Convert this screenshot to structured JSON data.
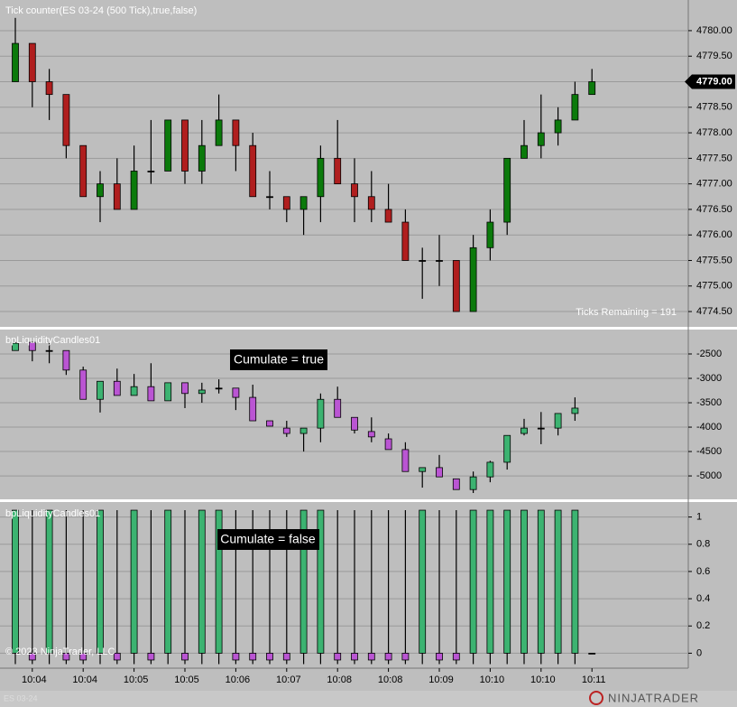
{
  "chart_data": [
    {
      "type": "candlestick",
      "title": "Tick counter(ES 03-24 (500 Tick),true,false)",
      "annotation": "Ticks Remaining = 191",
      "price_marker": {
        "value": 4779,
        "label": "4779.00"
      },
      "up_color": "#0b7a0b",
      "down_color": "#b01e1e",
      "grid": true,
      "ylim": [
        4774.2,
        4780.6
      ],
      "yticks": [
        {
          "value": 4780,
          "label": "4780.00"
        },
        {
          "value": 4779.5,
          "label": "4779.50"
        },
        {
          "value": 4779,
          "label": "4779.00"
        },
        {
          "value": 4778.5,
          "label": "4778.50"
        },
        {
          "value": 4778,
          "label": "4778.00"
        },
        {
          "value": 4777.5,
          "label": "4777.50"
        },
        {
          "value": 4777,
          "label": "4777.00"
        },
        {
          "value": 4776.5,
          "label": "4776.50"
        },
        {
          "value": 4776,
          "label": "4776.00"
        },
        {
          "value": 4775.5,
          "label": "4775.50"
        },
        {
          "value": 4775,
          "label": "4775.00"
        },
        {
          "value": 4774.5,
          "label": "4774.50"
        }
      ],
      "open": [
        4779.0,
        4779.75,
        4779.0,
        4778.75,
        4777.75,
        4776.75,
        4777.0,
        4776.5,
        4777.25,
        4777.25,
        4778.25,
        4777.25,
        4777.75,
        4778.25,
        4777.75,
        4776.75,
        4776.75,
        4776.5,
        4776.75,
        4777.5,
        4777.0,
        4776.75,
        4776.5,
        4776.25,
        4775.5,
        4775.5,
        4775.5,
        4774.5,
        4775.75,
        4776.25,
        4777.5,
        4777.75,
        4778.0,
        4778.25,
        4778.75
      ],
      "high": [
        4780.25,
        4779.75,
        4779.25,
        4778.75,
        4777.75,
        4777.25,
        4777.5,
        4777.75,
        4778.25,
        4778.25,
        4778.25,
        4778.25,
        4778.75,
        4778.25,
        4778.0,
        4777.25,
        4776.75,
        4776.75,
        4777.75,
        4778.25,
        4777.5,
        4777.25,
        4777.0,
        4776.5,
        4775.75,
        4776.0,
        4775.5,
        4776.0,
        4776.5,
        4777.5,
        4778.25,
        4778.75,
        4778.5,
        4779.0,
        4779.25
      ],
      "low": [
        4779.0,
        4778.5,
        4778.25,
        4777.5,
        4776.75,
        4776.25,
        4776.5,
        4776.5,
        4777.0,
        4777.25,
        4777.0,
        4777.0,
        4777.75,
        4777.25,
        4776.75,
        4776.5,
        4776.25,
        4776.0,
        4776.25,
        4777.0,
        4776.25,
        4776.25,
        4776.25,
        4775.5,
        4774.75,
        4775.0,
        4774.5,
        4774.5,
        4775.5,
        4776.0,
        4777.5,
        4777.5,
        4777.75,
        4778.25,
        4778.75
      ],
      "close": [
        4779.75,
        4779.0,
        4778.75,
        4777.75,
        4776.75,
        4777.0,
        4776.5,
        4777.25,
        4777.25,
        4778.25,
        4777.25,
        4777.75,
        4778.25,
        4777.75,
        4776.75,
        4776.75,
        4776.5,
        4776.75,
        4777.5,
        4777.0,
        4776.75,
        4776.5,
        4776.25,
        4775.5,
        4775.5,
        4775.5,
        4774.5,
        4775.75,
        4776.25,
        4777.5,
        4777.75,
        4778.0,
        4778.25,
        4778.75,
        4779.0
      ]
    },
    {
      "type": "candlestick",
      "title": "bpLiquidityCandles01",
      "annotation": "Cumulate = true",
      "up_color": "#3cb371",
      "down_color": "#ba55d3",
      "grid": true,
      "ylim": [
        -5480,
        -2000
      ],
      "yticks": [
        -2500,
        -3000,
        -3500,
        -4000,
        -4500,
        -5000
      ],
      "open": [
        -2430,
        -2260,
        -2430,
        -2430,
        -2830,
        -3430,
        -3060,
        -3350,
        -3170,
        -3460,
        -3090,
        -3310,
        -3200,
        -3200,
        -3390,
        -3870,
        -4020,
        -4130,
        -4020,
        -3430,
        -3800,
        -4090,
        -4240,
        -4460,
        -4910,
        -4830,
        -5060,
        -5280,
        -5020,
        -4720,
        -4130,
        -4020,
        -4020,
        -3720,
        null
      ],
      "high": [
        -2250,
        -2260,
        -2280,
        -2430,
        -2760,
        -3060,
        -2800,
        -2910,
        -2690,
        -3090,
        -3090,
        -3090,
        -3020,
        -3200,
        -3130,
        -3870,
        -3870,
        -4020,
        -3310,
        -3170,
        -3800,
        -3800,
        -4130,
        -4310,
        -4830,
        -4570,
        -5060,
        -4910,
        -4690,
        -4170,
        -3830,
        -3690,
        -3720,
        -3390,
        null
      ],
      "low": [
        -2430,
        -2650,
        -2690,
        -2930,
        -3430,
        -3700,
        -3350,
        -3350,
        -3460,
        -3460,
        -3610,
        -3500,
        -3310,
        -3650,
        -3870,
        -3980,
        -4200,
        -4500,
        -4310,
        -3800,
        -4130,
        -4310,
        -4460,
        -4910,
        -5240,
        -5020,
        -5280,
        -5350,
        -5130,
        -4870,
        -4170,
        -4350,
        -4170,
        -3870,
        null
      ],
      "close": [
        -2280,
        -2430,
        -2430,
        -2830,
        -3430,
        -3060,
        -3350,
        -3170,
        -3460,
        -3090,
        -3310,
        -3240,
        -3200,
        -3390,
        -3870,
        -3980,
        -4130,
        -4020,
        -3430,
        -3800,
        -4060,
        -4200,
        -4460,
        -4910,
        -4830,
        -5020,
        -5280,
        -5020,
        -4720,
        -4170,
        -4020,
        -4020,
        -3720,
        -3610,
        null
      ]
    },
    {
      "type": "candlestick",
      "title": "bpLiquidityCandles01",
      "annotation": "Cumulate = false",
      "up_color": "#3cb371",
      "down_color": "#ba55d3",
      "grid": true,
      "ylim": [
        -0.11,
        1.11
      ],
      "yticks": [
        0,
        0.2,
        0.4,
        0.6,
        0.8,
        1
      ],
      "categories": [
        null,
        "10:04",
        null,
        null,
        "10:04",
        null,
        null,
        "10:05",
        null,
        null,
        "10:05",
        null,
        null,
        "10:06",
        null,
        null,
        "10:07",
        null,
        null,
        "10:08",
        null,
        null,
        "10:08",
        null,
        null,
        "10:09",
        null,
        null,
        "10:10",
        null,
        null,
        "10:10",
        null,
        null,
        "10:11"
      ],
      "open": [
        0,
        0,
        0,
        0,
        0,
        0,
        0,
        0,
        0,
        0,
        0,
        0,
        0,
        0,
        0,
        0,
        0,
        0,
        0,
        0,
        0,
        0,
        0,
        0,
        0,
        0,
        0,
        0,
        0,
        0,
        0,
        0,
        0,
        0,
        0
      ],
      "high": [
        1.05,
        1.05,
        1.05,
        1.05,
        1.05,
        1.05,
        1.05,
        1.05,
        1.05,
        1.05,
        1.05,
        1.05,
        1.05,
        1.05,
        1.05,
        1.05,
        1.05,
        1.05,
        1.05,
        1.05,
        1.05,
        1.05,
        1.05,
        1.05,
        1.05,
        1.05,
        1.05,
        1.05,
        1.05,
        1.05,
        1.05,
        1.05,
        1.05,
        1.05,
        0
      ],
      "low": [
        -0.08,
        -0.08,
        -0.08,
        -0.08,
        -0.08,
        -0.08,
        -0.08,
        -0.08,
        -0.08,
        -0.08,
        -0.08,
        -0.08,
        -0.08,
        -0.08,
        -0.08,
        -0.08,
        -0.08,
        -0.08,
        -0.08,
        -0.08,
        -0.08,
        -0.08,
        -0.08,
        -0.08,
        -0.08,
        -0.08,
        -0.08,
        -0.08,
        -0.08,
        -0.08,
        -0.08,
        -0.08,
        -0.08,
        -0.08,
        0
      ],
      "close": [
        1.05,
        -0.05,
        1.05,
        -0.05,
        -0.05,
        1.05,
        -0.05,
        1.05,
        -0.05,
        1.05,
        -0.05,
        1.05,
        1.05,
        -0.05,
        -0.05,
        -0.05,
        -0.05,
        1.05,
        1.05,
        -0.05,
        -0.05,
        -0.05,
        -0.05,
        -0.05,
        1.05,
        -0.05,
        -0.05,
        1.05,
        1.05,
        1.05,
        1.05,
        1.05,
        1.05,
        1.05,
        0
      ]
    }
  ],
  "copyright": "© 2023 NinjaTrader, LLC",
  "logo": "NINJATRADER",
  "watermark": "ES 03-24"
}
